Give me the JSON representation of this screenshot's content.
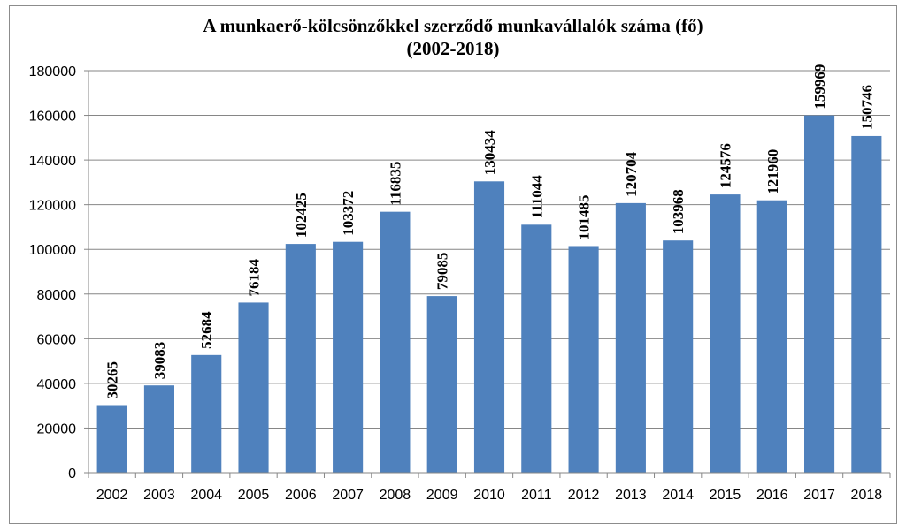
{
  "chart_data": {
    "type": "bar",
    "title": "A munkaerő-kölcsönzőkkel szerződő munkavállalók száma (fő)",
    "subtitle": "(2002-2018)",
    "categories": [
      "2002",
      "2003",
      "2004",
      "2005",
      "2006",
      "2007",
      "2008",
      "2009",
      "2010",
      "2011",
      "2012",
      "2013",
      "2014",
      "2015",
      "2016",
      "2017",
      "2018"
    ],
    "values": [
      30265,
      39083,
      52684,
      76184,
      102425,
      103372,
      116835,
      79085,
      130434,
      111044,
      101485,
      120704,
      103968,
      124576,
      121960,
      159969,
      150746
    ],
    "y_ticks": [
      "0",
      "20000",
      "40000",
      "60000",
      "80000",
      "100000",
      "120000",
      "140000",
      "160000",
      "180000"
    ],
    "ylim": [
      0,
      180000
    ],
    "grid": true,
    "legend": "none",
    "bar_color": "#4f81bd",
    "grid_color": "#868686"
  }
}
